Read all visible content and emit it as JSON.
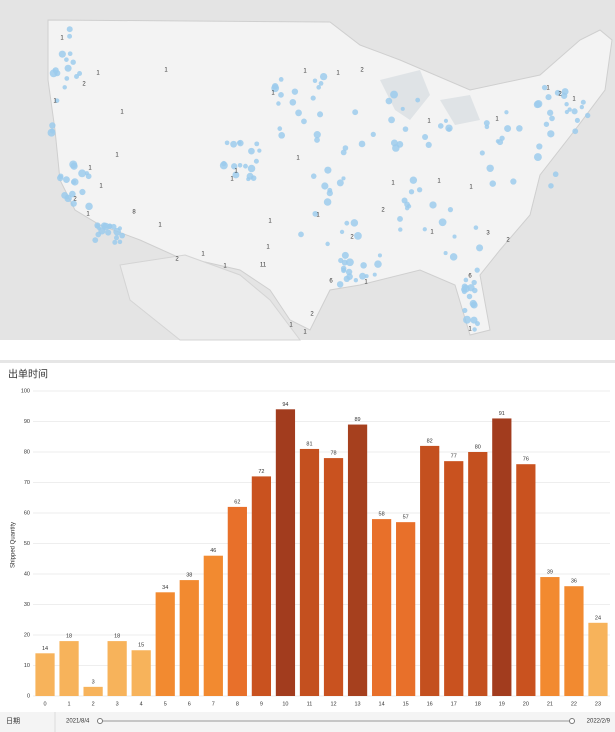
{
  "map": {
    "labels": [
      "1",
      "1",
      "2",
      "1",
      "1",
      "1",
      "1",
      "1",
      "1",
      "2",
      "1",
      "1",
      "1",
      "2",
      "8",
      "1",
      "1",
      "1",
      "1",
      "1",
      "11",
      "1",
      "1",
      "2",
      "6",
      "1",
      "1",
      "1",
      "2",
      "2",
      "1",
      "3",
      "2",
      "6",
      "1",
      "1",
      "2",
      "1",
      "1",
      "1",
      "1",
      "1",
      "1",
      "2",
      "1",
      "1",
      "1"
    ]
  },
  "chart_data": {
    "type": "bar",
    "title": "出单时间",
    "y_label": "Shipped Quantity",
    "categories": [
      "0",
      "1",
      "2",
      "3",
      "4",
      "5",
      "6",
      "7",
      "8",
      "9",
      "10",
      "11",
      "12",
      "13",
      "14",
      "15",
      "16",
      "17",
      "18",
      "19",
      "20",
      "21",
      "22",
      "23"
    ],
    "values": [
      14,
      18,
      3,
      18,
      15,
      34,
      38,
      46,
      62,
      72,
      94,
      81,
      78,
      89,
      58,
      57,
      82,
      77,
      80,
      91,
      76,
      39,
      36,
      24
    ],
    "colors": [
      "#f7b35b",
      "#f7b35b",
      "#f7b35b",
      "#f7b35b",
      "#f7b35b",
      "#f28a30",
      "#f28a30",
      "#f28a30",
      "#e8702a",
      "#c9521f",
      "#a23c1e",
      "#c4501f",
      "#c9521f",
      "#a6401e",
      "#e8702a",
      "#e8702a",
      "#c4501f",
      "#c9521f",
      "#c4501f",
      "#a23c1e",
      "#c9521f",
      "#f28a30",
      "#f28a30",
      "#f7b35b"
    ],
    "ylim": [
      0,
      100
    ],
    "yticks": [
      0,
      10,
      20,
      30,
      40,
      50,
      60,
      70,
      80,
      90,
      100
    ],
    "grid": true
  },
  "filter": {
    "label": "日期",
    "start": "2021/8/4",
    "end": "2022/2/9"
  }
}
